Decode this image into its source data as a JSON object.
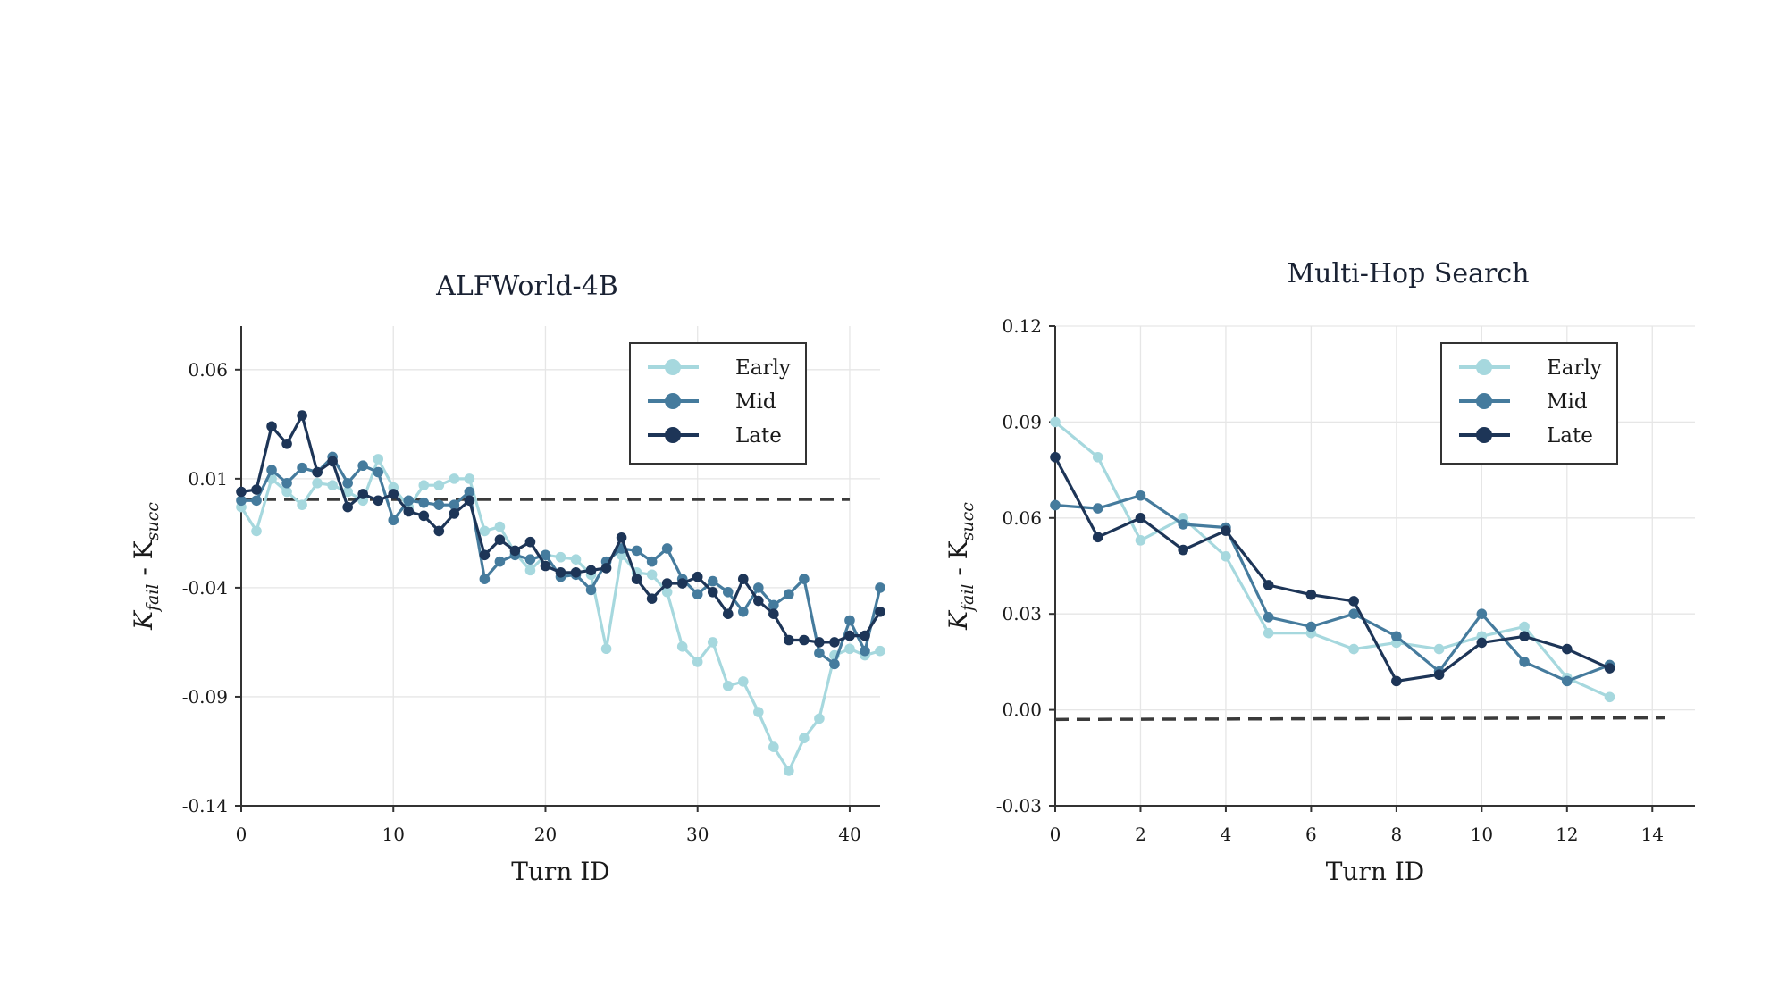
{
  "chart_data": [
    {
      "type": "line",
      "title": "ALFWorld-4B",
      "xlabel": "Turn ID",
      "ylabel": {
        "base": "K",
        "sub1": "fail",
        "mid": " - K",
        "sub2": "succ"
      },
      "xlim": [
        0,
        42
      ],
      "ylim": [
        -0.14,
        0.08
      ],
      "xticks": [
        0,
        10,
        20,
        30,
        40
      ],
      "yticks": [
        -0.14,
        -0.09,
        -0.04,
        0.01,
        0.06
      ],
      "xtick_labels": [
        "0",
        "10",
        "20",
        "30",
        "40"
      ],
      "ytick_labels": [
        "-0.14",
        "-0.09",
        "-0.04",
        "0.01",
        "0.06"
      ],
      "grid": true,
      "legend_position": "top-right",
      "baseline": {
        "x": [
          0,
          40
        ],
        "y": [
          0.0005,
          0.0005
        ],
        "style": "dashed"
      },
      "series": [
        {
          "name": "Early",
          "color": "#a6d8de",
          "x": [
            0,
            1,
            2,
            3,
            4,
            5,
            6,
            7,
            8,
            9,
            10,
            11,
            12,
            13,
            14,
            15,
            16,
            17,
            18,
            19,
            20,
            21,
            22,
            23,
            24,
            25,
            26,
            27,
            28,
            29,
            30,
            31,
            32,
            33,
            34,
            35,
            36,
            37,
            38,
            39,
            40,
            41,
            42
          ],
          "y": [
            -0.003,
            -0.014,
            0.01,
            0.004,
            -0.002,
            0.008,
            0.007,
            0.004,
            0.0,
            0.019,
            0.006,
            -0.003,
            0.007,
            0.007,
            0.01,
            0.01,
            -0.014,
            -0.012,
            -0.024,
            -0.032,
            -0.025,
            -0.026,
            -0.027,
            -0.034,
            -0.068,
            -0.025,
            -0.033,
            -0.034,
            -0.042,
            -0.067,
            -0.074,
            -0.065,
            -0.085,
            -0.083,
            -0.097,
            -0.113,
            -0.124,
            -0.109,
            -0.1,
            -0.071,
            -0.068,
            -0.071,
            -0.069
          ]
        },
        {
          "name": "Mid",
          "color": "#457b9d",
          "x": [
            0,
            1,
            2,
            3,
            4,
            5,
            6,
            7,
            8,
            9,
            10,
            11,
            12,
            13,
            14,
            15,
            16,
            17,
            18,
            19,
            20,
            21,
            22,
            23,
            24,
            25,
            26,
            27,
            28,
            29,
            30,
            31,
            32,
            33,
            34,
            35,
            36,
            37,
            38,
            39,
            40,
            41,
            42
          ],
          "y": [
            0.0,
            0.0,
            0.014,
            0.008,
            0.015,
            0.013,
            0.02,
            0.008,
            0.016,
            0.013,
            -0.009,
            0.0,
            -0.001,
            -0.002,
            -0.002,
            0.004,
            -0.036,
            -0.028,
            -0.025,
            -0.027,
            -0.025,
            -0.035,
            -0.034,
            -0.041,
            -0.028,
            -0.022,
            -0.023,
            -0.028,
            -0.022,
            -0.036,
            -0.043,
            -0.037,
            -0.042,
            -0.051,
            -0.04,
            -0.048,
            -0.043,
            -0.036,
            -0.07,
            -0.075,
            -0.055,
            -0.069,
            -0.04
          ]
        },
        {
          "name": "Late",
          "color": "#1d3557",
          "x": [
            0,
            1,
            2,
            3,
            4,
            5,
            6,
            7,
            8,
            9,
            10,
            11,
            12,
            13,
            14,
            15,
            16,
            17,
            18,
            19,
            20,
            21,
            22,
            23,
            24,
            25,
            26,
            27,
            28,
            29,
            30,
            31,
            32,
            33,
            34,
            35,
            36,
            37,
            38,
            39,
            40,
            41,
            42
          ],
          "y": [
            0.004,
            0.005,
            0.034,
            0.026,
            0.039,
            0.013,
            0.018,
            -0.003,
            0.003,
            0.0,
            0.003,
            -0.005,
            -0.007,
            -0.014,
            -0.006,
            0.0,
            -0.025,
            -0.018,
            -0.023,
            -0.019,
            -0.03,
            -0.033,
            -0.033,
            -0.032,
            -0.031,
            -0.017,
            -0.036,
            -0.045,
            -0.038,
            -0.038,
            -0.035,
            -0.042,
            -0.052,
            -0.036,
            -0.046,
            -0.052,
            -0.064,
            -0.064,
            -0.065,
            -0.065,
            -0.062,
            -0.062,
            -0.051
          ]
        }
      ]
    },
    {
      "type": "line",
      "title": "Multi-Hop Search",
      "xlabel": "Turn ID",
      "ylabel": {
        "base": "K",
        "sub1": "fail",
        "mid": " - K",
        "sub2": "succ"
      },
      "xlim": [
        0,
        15
      ],
      "ylim": [
        -0.03,
        0.12
      ],
      "xticks": [
        0,
        2,
        4,
        6,
        8,
        10,
        12,
        14
      ],
      "yticks": [
        -0.03,
        0.0,
        0.03,
        0.06,
        0.09,
        0.12
      ],
      "xtick_labels": [
        "0",
        "2",
        "4",
        "6",
        "8",
        "10",
        "12",
        "14"
      ],
      "ytick_labels": [
        "-0.03",
        "0.00",
        "0.03",
        "0.06",
        "0.09",
        "0.12"
      ],
      "grid": true,
      "legend_position": "top-right",
      "baseline": {
        "x": [
          0,
          14.3
        ],
        "y": [
          -0.003,
          -0.0025
        ],
        "style": "dashed"
      },
      "series": [
        {
          "name": "Early",
          "color": "#a6d8de",
          "x": [
            0,
            1,
            2,
            3,
            4,
            5,
            6,
            7,
            8,
            9,
            10,
            11,
            12,
            13
          ],
          "y": [
            0.09,
            0.079,
            0.053,
            0.06,
            0.048,
            0.024,
            0.024,
            0.019,
            0.021,
            0.019,
            0.023,
            0.026,
            0.01,
            0.004
          ]
        },
        {
          "name": "Mid",
          "color": "#457b9d",
          "x": [
            0,
            1,
            2,
            3,
            4,
            5,
            6,
            7,
            8,
            9,
            10,
            11,
            12,
            13
          ],
          "y": [
            0.064,
            0.063,
            0.067,
            0.058,
            0.057,
            0.029,
            0.026,
            0.03,
            0.023,
            0.012,
            0.03,
            0.015,
            0.009,
            0.014
          ]
        },
        {
          "name": "Late",
          "color": "#1d3557",
          "x": [
            0,
            1,
            2,
            3,
            4,
            5,
            6,
            7,
            8,
            9,
            10,
            11,
            12,
            13
          ],
          "y": [
            0.079,
            0.054,
            0.06,
            0.05,
            0.056,
            0.039,
            0.036,
            0.034,
            0.009,
            0.011,
            0.021,
            0.023,
            0.019,
            0.013
          ]
        }
      ]
    }
  ]
}
